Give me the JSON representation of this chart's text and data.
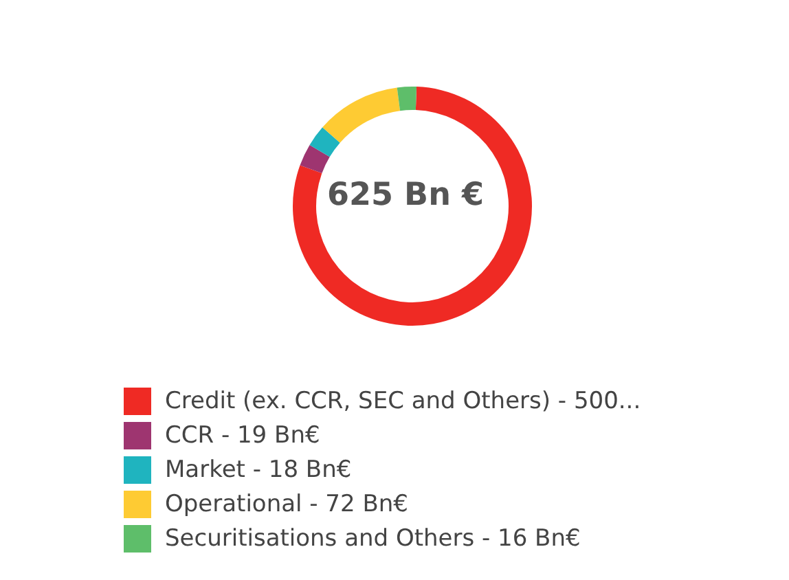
{
  "chart_data": {
    "type": "donut",
    "categories": [
      "Credit (ex. CCR, SEC and Others) - 500...",
      "CCR - 19 Bn€",
      "Market - 18 Bn€",
      "Operational - 72 Bn€",
      "Securitisations and Others - 16 Bn€"
    ],
    "values": [
      80,
      3.0,
      2.9,
      11.5,
      2.6
    ],
    "colors": [
      "#ef2a24",
      "#9e3570",
      "#1fb4bf",
      "#fecb33",
      "#5ebe6a"
    ],
    "annotations": [
      "625 Bn €"
    ],
    "legend": "bottom"
  }
}
